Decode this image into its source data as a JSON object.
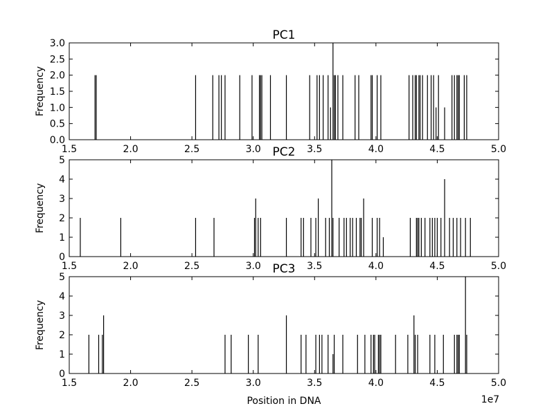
{
  "figure": {
    "xlabel": "Position in DNA",
    "x_offset_label": "1e7"
  },
  "chart_data": [
    {
      "type": "bar",
      "title": "PC1",
      "ylabel": "Frequency",
      "xlim": [
        1.5,
        5.0
      ],
      "ylim": [
        0,
        3.0
      ],
      "xticks": [
        "1.5",
        "2.0",
        "2.5",
        "3.0",
        "3.5",
        "4.0",
        "4.5",
        "5.0"
      ],
      "yticks": [
        "0.0",
        "0.5",
        "1.0",
        "1.5",
        "2.0",
        "2.5",
        "3.0"
      ],
      "grid": false,
      "x": [
        1.71,
        1.72,
        2.53,
        2.67,
        2.72,
        2.74,
        2.77,
        2.89,
        2.99,
        3.05,
        3.06,
        3.07,
        3.14,
        3.27,
        3.46,
        3.52,
        3.54,
        3.57,
        3.61,
        3.63,
        3.65,
        3.66,
        3.67,
        3.69,
        3.73,
        3.83,
        3.86,
        3.96,
        3.97,
        4.01,
        4.04,
        4.27,
        4.3,
        4.32,
        4.33,
        4.35,
        4.36,
        4.38,
        4.42,
        4.45,
        4.47,
        4.49,
        4.51,
        4.56,
        4.62,
        4.64,
        4.66,
        4.67,
        4.68,
        4.72,
        4.74
      ],
      "values": [
        2,
        2,
        2,
        2,
        2,
        2,
        2,
        2,
        2,
        2,
        2,
        2,
        2,
        2,
        2,
        2,
        2,
        2,
        2,
        1,
        3,
        2,
        2,
        2,
        2,
        2,
        2,
        2,
        2,
        2,
        2,
        2,
        2,
        2,
        2,
        2,
        2,
        2,
        2,
        2,
        2,
        1,
        2,
        1,
        2,
        2,
        2,
        2,
        2,
        2,
        2
      ]
    },
    {
      "type": "bar",
      "title": "PC2",
      "ylabel": "Frequency",
      "xlim": [
        1.5,
        5.0
      ],
      "ylim": [
        0,
        5
      ],
      "xticks": [
        "1.5",
        "2.0",
        "2.5",
        "3.0",
        "3.5",
        "4.0",
        "4.5",
        "5.0"
      ],
      "yticks": [
        "0",
        "1",
        "2",
        "3",
        "4",
        "5"
      ],
      "grid": false,
      "x": [
        1.59,
        1.92,
        2.53,
        2.68,
        3.01,
        3.02,
        3.04,
        3.06,
        3.27,
        3.39,
        3.41,
        3.47,
        3.51,
        3.53,
        3.59,
        3.62,
        3.64,
        3.65,
        3.7,
        3.74,
        3.76,
        3.79,
        3.81,
        3.84,
        3.87,
        3.88,
        3.9,
        3.97,
        4.01,
        4.03,
        4.06,
        4.28,
        4.33,
        4.34,
        4.35,
        4.37,
        4.4,
        4.44,
        4.46,
        4.48,
        4.5,
        4.53,
        4.56,
        4.6,
        4.63,
        4.66,
        4.69,
        4.73,
        4.77
      ],
      "values": [
        2,
        2,
        2,
        2,
        2,
        3,
        2,
        2,
        2,
        2,
        2,
        2,
        2,
        3,
        2,
        2,
        5,
        2,
        2,
        2,
        2,
        2,
        2,
        2,
        2,
        2,
        3,
        2,
        2,
        2,
        1,
        2,
        2,
        2,
        2,
        2,
        2,
        2,
        2,
        2,
        2,
        2,
        4,
        2,
        2,
        2,
        2,
        2,
        2
      ]
    },
    {
      "type": "bar",
      "title": "PC3",
      "ylabel": "Frequency",
      "xlim": [
        1.5,
        5.0
      ],
      "ylim": [
        0,
        5
      ],
      "xticks": [
        "1.5",
        "2.0",
        "2.5",
        "3.0",
        "3.5",
        "4.0",
        "4.5",
        "5.0"
      ],
      "yticks": [
        "0",
        "1",
        "2",
        "3",
        "4",
        "5"
      ],
      "grid": false,
      "x": [
        1.66,
        1.74,
        1.77,
        1.78,
        2.77,
        2.82,
        2.96,
        3.04,
        3.27,
        3.39,
        3.43,
        3.51,
        3.54,
        3.56,
        3.61,
        3.65,
        3.66,
        3.73,
        3.85,
        3.91,
        3.96,
        3.98,
        3.99,
        4.02,
        4.03,
        4.04,
        4.16,
        4.26,
        4.31,
        4.32,
        4.34,
        4.44,
        4.48,
        4.55,
        4.64,
        4.66,
        4.67,
        4.68,
        4.73,
        4.74
      ],
      "values": [
        2,
        2,
        2,
        3,
        2,
        2,
        2,
        2,
        3,
        2,
        2,
        2,
        2,
        2,
        2,
        1,
        2,
        2,
        2,
        2,
        2,
        2,
        2,
        2,
        2,
        2,
        2,
        2,
        3,
        2,
        2,
        2,
        2,
        2,
        2,
        2,
        2,
        2,
        5,
        2
      ]
    }
  ]
}
